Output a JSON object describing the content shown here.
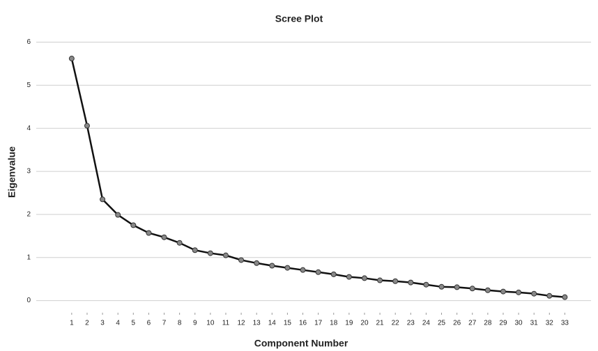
{
  "chart_data": {
    "type": "line",
    "title": "Scree Plot",
    "x_label": "Component Number",
    "y_label": "Eigenvalue",
    "x": [
      1,
      2,
      3,
      4,
      5,
      6,
      7,
      8,
      9,
      10,
      11,
      12,
      13,
      14,
      15,
      16,
      17,
      18,
      19,
      20,
      21,
      22,
      23,
      24,
      25,
      26,
      27,
      28,
      29,
      30,
      31,
      32,
      33
    ],
    "series": [
      {
        "color": "#111111",
        "values": [
          5.62,
          4.06,
          2.35,
          1.99,
          1.75,
          1.57,
          1.47,
          1.34,
          1.17,
          1.1,
          1.05,
          0.94,
          0.87,
          0.81,
          0.76,
          0.71,
          0.66,
          0.61,
          0.55,
          0.52,
          0.47,
          0.45,
          0.42,
          0.37,
          0.32,
          0.31,
          0.28,
          0.24,
          0.21,
          0.19,
          0.16,
          0.11,
          0.08
        ]
      }
    ],
    "xlim": [
      -1.3,
      34.7
    ],
    "xticks": [
      1,
      2,
      3,
      4,
      5,
      6,
      7,
      8,
      9,
      10,
      11,
      12,
      13,
      14,
      15,
      16,
      17,
      18,
      19,
      20,
      21,
      22,
      23,
      24,
      25,
      26,
      27,
      28,
      29,
      30,
      31,
      32,
      33
    ],
    "ylim": [
      -0.33,
      6.3
    ],
    "yticks": [
      0,
      1,
      2,
      3,
      4,
      5,
      6
    ],
    "grid": true
  }
}
